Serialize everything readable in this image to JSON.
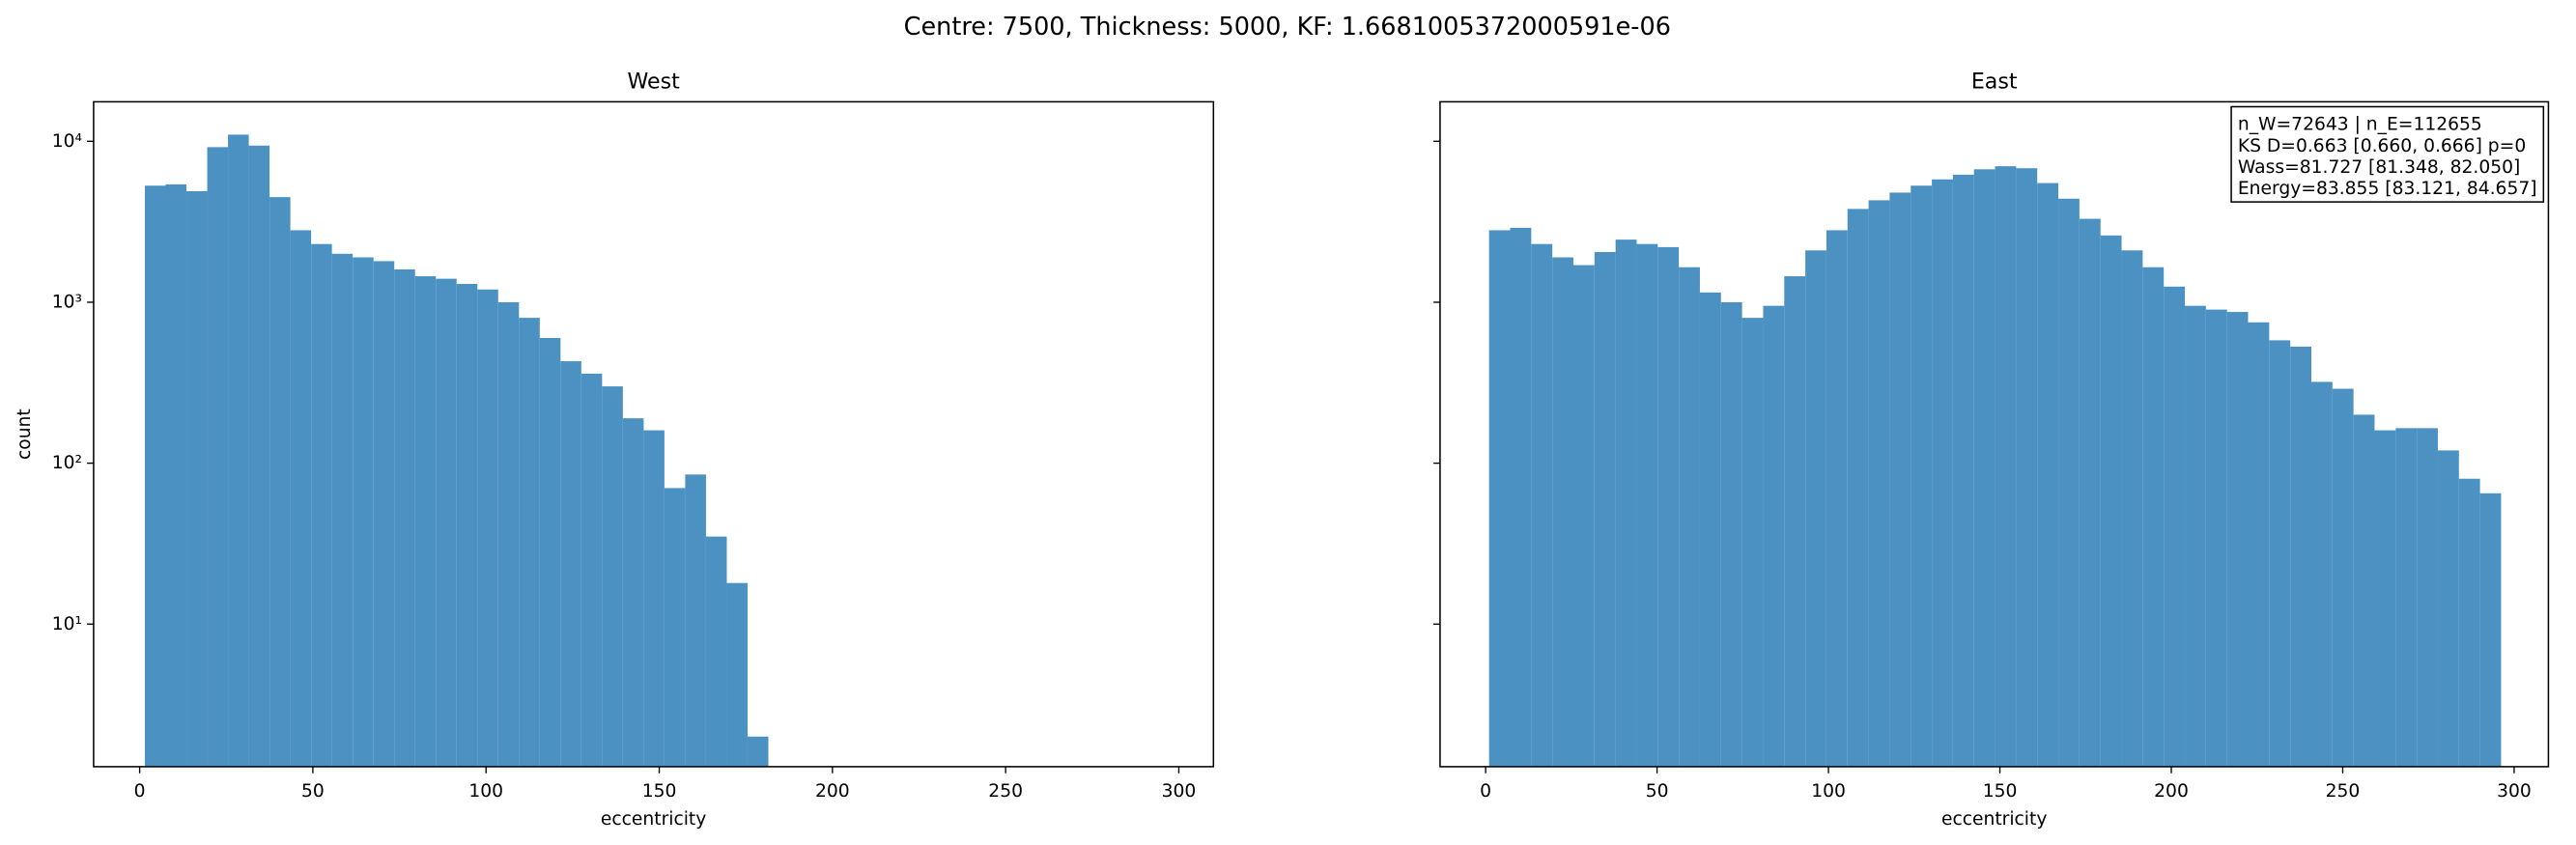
{
  "title": "Centre: 7500, Thickness: 5000, KF: 1.6681005372000591e-06",
  "chart_data": [
    {
      "type": "histogram",
      "title": "West",
      "xlabel": "eccentricity",
      "ylabel": "count",
      "color": "#4b92c3",
      "log_y": true,
      "bins": [
        1.5,
        7.5,
        13.5,
        19.5,
        25.5,
        31.5,
        37.5,
        43.5,
        49.5,
        55.5,
        61.5,
        67.5,
        73.5,
        79.5,
        85.5,
        91.5,
        97.5,
        103.5,
        109.5,
        115.5,
        121.5,
        127.5,
        133.5,
        139.5,
        145.5,
        151.5,
        157.5,
        163.5,
        169.5,
        175.5,
        181.5
      ],
      "values": [
        5300,
        5400,
        4900,
        9200,
        11000,
        9400,
        4500,
        2800,
        2300,
        2000,
        1900,
        1800,
        1600,
        1450,
        1400,
        1300,
        1200,
        1000,
        800,
        600,
        430,
        360,
        300,
        190,
        160,
        70,
        85,
        35,
        18,
        2
      ],
      "xlim": [
        -13.3,
        310
      ],
      "ylim": [
        1.3,
        17600
      ],
      "xticks": [
        0,
        50,
        100,
        150,
        200,
        250,
        300
      ],
      "yticks": [
        {
          "value": 10,
          "label": "10¹"
        },
        {
          "value": 100,
          "label": "10²"
        },
        {
          "value": 1000,
          "label": "10³"
        },
        {
          "value": 10000,
          "label": "10⁴"
        }
      ]
    },
    {
      "type": "histogram",
      "title": "East",
      "xlabel": "eccentricity",
      "color": "#4b92c3",
      "log_y": true,
      "bins": [
        1,
        7.15,
        13.3,
        19.45,
        25.6,
        31.75,
        37.9,
        44.05,
        50.2,
        56.35,
        62.5,
        68.65,
        74.8,
        80.95,
        87.1,
        93.25,
        99.4,
        105.55,
        111.7,
        117.85,
        124,
        130.15,
        136.3,
        142.45,
        148.6,
        154.75,
        160.9,
        167.05,
        173.2,
        179.35,
        185.5,
        191.65,
        197.8,
        203.95,
        210.1,
        216.25,
        222.4,
        228.55,
        234.7,
        240.85,
        247,
        253.15,
        259.3,
        265.45,
        271.6,
        277.75,
        283.9,
        290.05,
        296.2
      ],
      "values": [
        2800,
        2900,
        2300,
        1900,
        1700,
        2050,
        2450,
        2300,
        2200,
        1650,
        1150,
        1000,
        800,
        950,
        1450,
        2100,
        2800,
        3800,
        4300,
        4800,
        5300,
        5800,
        6200,
        6700,
        7000,
        6800,
        5500,
        4400,
        3300,
        2600,
        2100,
        1650,
        1250,
        950,
        900,
        870,
        750,
        580,
        530,
        320,
        290,
        200,
        160,
        165,
        165,
        120,
        80,
        65
      ],
      "xlim": [
        -13.3,
        310
      ],
      "ylim": [
        1.3,
        17600
      ],
      "xticks": [
        0,
        50,
        100,
        150,
        200,
        250,
        300
      ],
      "yticks": [
        10,
        100,
        1000,
        10000
      ],
      "annotation": [
        "n_W=72643 | n_E=112655",
        "KS D=0.663 [0.660, 0.666]  p=0",
        "Wass=81.727 [81.348, 82.050]",
        "Energy=83.855 [83.121, 84.657]"
      ]
    }
  ]
}
